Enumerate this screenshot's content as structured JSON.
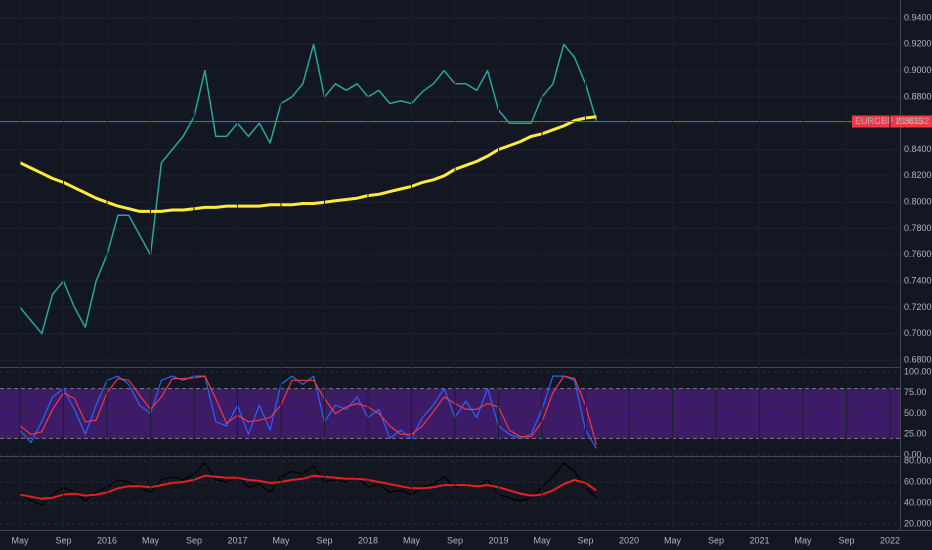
{
  "chart_data": [
    {
      "type": "line",
      "ylim": [
        0.675,
        0.95
      ],
      "grid": true,
      "yticks": [
        {
          "value": 0.68,
          "label": "0.68000"
        },
        {
          "value": 0.7,
          "label": "0.70000"
        },
        {
          "value": 0.72,
          "label": "0.72000"
        },
        {
          "value": 0.74,
          "label": "0.74000"
        },
        {
          "value": 0.76,
          "label": "0.76000"
        },
        {
          "value": 0.78,
          "label": "0.78000"
        },
        {
          "value": 0.8,
          "label": "0.80000"
        },
        {
          "value": 0.82,
          "label": "0.82000"
        },
        {
          "value": 0.84,
          "label": "0.84000"
        },
        {
          "value": 0.86,
          "label": "0.86000"
        },
        {
          "value": 0.88,
          "label": "0.88000"
        },
        {
          "value": 0.9,
          "label": "0.90000"
        },
        {
          "value": 0.92,
          "label": "0.92000"
        },
        {
          "value": 0.94,
          "label": "0.94000"
        }
      ],
      "price_label": "EURGBP 21.035",
      "last_price": {
        "value": 0.86132,
        "label": "0.86132"
      },
      "last_price_color": "#f23645",
      "series": [
        {
          "color": "#26a69a",
          "width": 1.5,
          "values": [
            0.72,
            0.71,
            0.7,
            0.73,
            0.74,
            0.72,
            0.705,
            0.74,
            0.76,
            0.79,
            0.79,
            0.775,
            0.76,
            0.83,
            0.84,
            0.85,
            0.865,
            0.9,
            0.85,
            0.85,
            0.86,
            0.85,
            0.86,
            0.845,
            0.875,
            0.88,
            0.89,
            0.92,
            0.88,
            0.89,
            0.885,
            0.89,
            0.88,
            0.885,
            0.875,
            0.877,
            0.875,
            0.884,
            0.89,
            0.9,
            0.89,
            0.89,
            0.885,
            0.9,
            0.87,
            0.86,
            0.86,
            0.86,
            0.88,
            0.89,
            0.92,
            0.91,
            0.89,
            0.862,
            null,
            null,
            null,
            null,
            null,
            null,
            null,
            null,
            null,
            null,
            null,
            null,
            null,
            null,
            null,
            null,
            null,
            null,
            null,
            null,
            null,
            null,
            null,
            null,
            null,
            null,
            null
          ]
        },
        {
          "color": "#ffeb3b",
          "width": 3,
          "values": [
            0.83,
            0.826,
            0.822,
            0.818,
            0.815,
            0.811,
            0.807,
            0.803,
            0.8,
            0.797,
            0.795,
            0.793,
            0.793,
            0.793,
            0.794,
            0.794,
            0.795,
            0.796,
            0.796,
            0.797,
            0.797,
            0.797,
            0.797,
            0.798,
            0.798,
            0.798,
            0.799,
            0.799,
            0.8,
            0.801,
            0.802,
            0.803,
            0.805,
            0.806,
            0.808,
            0.81,
            0.812,
            0.815,
            0.817,
            0.82,
            0.825,
            0.828,
            0.831,
            0.835,
            0.84,
            0.843,
            0.846,
            0.85,
            0.852,
            0.855,
            0.858,
            0.862,
            0.864,
            0.865,
            null,
            null,
            null,
            null,
            null,
            null,
            null,
            null,
            null,
            null,
            null,
            null,
            null,
            null,
            null,
            null,
            null,
            null,
            null,
            null,
            null,
            null,
            null,
            null,
            null,
            null,
            null
          ]
        }
      ]
    },
    {
      "type": "line",
      "ylim": [
        0,
        100
      ],
      "band": [
        20,
        80
      ],
      "band_color": "#4a1d7a",
      "yticks": [
        {
          "value": 0,
          "label": "0.00"
        },
        {
          "value": 25,
          "label": "25.00"
        },
        {
          "value": 50,
          "label": "50.00"
        },
        {
          "value": 75,
          "label": "75.00"
        },
        {
          "value": 100,
          "label": "100.00"
        }
      ],
      "series": [
        {
          "color": "#2962ff",
          "width": 1.2,
          "values": [
            30,
            15,
            40,
            70,
            80,
            55,
            25,
            60,
            90,
            95,
            85,
            60,
            50,
            90,
            95,
            90,
            95,
            95,
            40,
            35,
            60,
            25,
            60,
            30,
            85,
            95,
            85,
            95,
            40,
            60,
            55,
            70,
            45,
            55,
            20,
            30,
            20,
            45,
            60,
            80,
            45,
            65,
            45,
            80,
            35,
            25,
            20,
            25,
            55,
            95,
            95,
            90,
            30,
            8,
            null,
            null,
            null,
            null,
            null,
            null,
            null,
            null,
            null,
            null,
            null,
            null,
            null,
            null,
            null,
            null,
            null,
            null,
            null,
            null,
            null,
            null,
            null,
            null,
            null,
            null,
            null
          ]
        },
        {
          "color": "#f23645",
          "width": 1.2,
          "values": [
            35,
            25,
            28,
            55,
            75,
            68,
            40,
            42,
            75,
            92,
            90,
            72,
            55,
            70,
            92,
            92,
            93,
            95,
            68,
            38,
            48,
            40,
            42,
            45,
            60,
            90,
            90,
            90,
            68,
            50,
            58,
            62,
            58,
            50,
            35,
            25,
            25,
            35,
            52,
            70,
            62,
            55,
            55,
            62,
            58,
            30,
            22,
            22,
            40,
            75,
            95,
            92,
            60,
            12,
            null,
            null,
            null,
            null,
            null,
            null,
            null,
            null,
            null,
            null,
            null,
            null,
            null,
            null,
            null,
            null,
            null,
            null,
            null,
            null,
            null,
            null,
            null,
            null,
            null,
            null,
            null
          ]
        }
      ]
    },
    {
      "type": "line",
      "ylim": [
        15,
        82
      ],
      "yticks": [
        {
          "value": 20,
          "label": "20.000000"
        },
        {
          "value": 40,
          "label": "40.000000"
        },
        {
          "value": 60,
          "label": "60.000000"
        },
        {
          "value": 80,
          "label": "80.000000"
        }
      ],
      "categories": [
        "May",
        null,
        null,
        null,
        "Sep",
        null,
        null,
        null,
        "2016",
        null,
        null,
        null,
        "May",
        null,
        null,
        null,
        "Sep",
        null,
        null,
        null,
        "2017",
        null,
        null,
        null,
        "May",
        null,
        null,
        null,
        "Sep",
        null,
        null,
        null,
        "2018",
        null,
        null,
        null,
        "May",
        null,
        null,
        null,
        "Sep",
        null,
        null,
        null,
        "2019",
        null,
        null,
        null,
        "May",
        null,
        null,
        null,
        "Sep",
        null,
        null,
        null,
        "2020",
        null,
        null,
        null,
        "May",
        null,
        null,
        null,
        "Sep",
        null,
        null,
        null,
        "2021",
        null,
        null,
        null,
        "May",
        null,
        null,
        null,
        "Sep",
        null,
        null,
        null,
        "2022"
      ],
      "series": [
        {
          "color": "#000000",
          "width": 1.2,
          "values": [
            50,
            42,
            38,
            48,
            55,
            50,
            42,
            50,
            55,
            62,
            60,
            55,
            50,
            62,
            65,
            62,
            67,
            78,
            62,
            60,
            65,
            55,
            58,
            50,
            65,
            70,
            68,
            75,
            60,
            62,
            60,
            65,
            55,
            58,
            50,
            52,
            48,
            55,
            58,
            65,
            55,
            58,
            55,
            62,
            48,
            45,
            42,
            45,
            55,
            65,
            78,
            70,
            55,
            45,
            null,
            null,
            null,
            null,
            null,
            null,
            null,
            null,
            null,
            null,
            null,
            null,
            null,
            null,
            null,
            null,
            null,
            null,
            null,
            null,
            null,
            null,
            null,
            null,
            null,
            null,
            null
          ]
        },
        {
          "color": "#e52020",
          "width": 2,
          "values": [
            48,
            46,
            44,
            45,
            48,
            49,
            47,
            48,
            50,
            54,
            56,
            56,
            55,
            57,
            59,
            60,
            62,
            66,
            65,
            64,
            64,
            62,
            61,
            59,
            60,
            62,
            63,
            66,
            65,
            64,
            63,
            63,
            62,
            60,
            58,
            56,
            54,
            54,
            55,
            57,
            57,
            57,
            56,
            57,
            55,
            52,
            49,
            47,
            48,
            52,
            58,
            62,
            59,
            52,
            null,
            null,
            null,
            null,
            null,
            null,
            null,
            null,
            null,
            null,
            null,
            null,
            null,
            null,
            null,
            null,
            null,
            null,
            null,
            null,
            null,
            null,
            null,
            null,
            null,
            null,
            null
          ]
        }
      ]
    }
  ]
}
